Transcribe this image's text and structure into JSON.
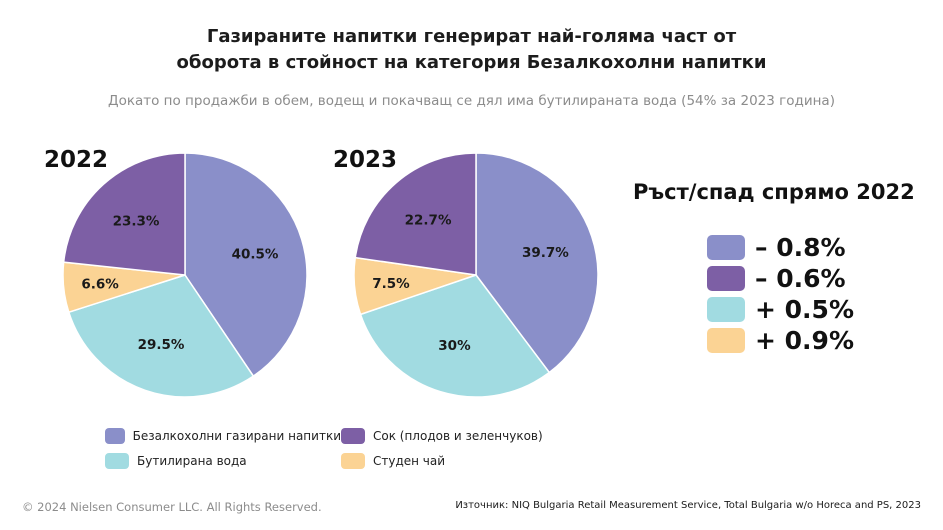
{
  "header": {
    "title_line1": "Газираните напитки генерират най-голяма част от",
    "title_line2": "оборота в стойност на категория Безалкохолни напитки",
    "subtitle": "Докато по продажби в обем, водещ и покачващ се дял има бутилираната вода (54% за 2023 година)"
  },
  "chart_data": [
    {
      "type": "pie",
      "title": "2022",
      "categories": [
        "Безалкохолни газирани напитки",
        "Бутилирана вода",
        "Студен чай",
        "Сок (плодов и зеленчуков)"
      ],
      "values": [
        40.5,
        29.5,
        6.6,
        23.3
      ],
      "labels": [
        "40.5%",
        "29.5%",
        "6.6%",
        "23.3%"
      ],
      "colors": [
        "#8a8fc9",
        "#a1dbe1",
        "#fbd394",
        "#7d5fa5"
      ]
    },
    {
      "type": "pie",
      "title": "2023",
      "categories": [
        "Безалкохолни газирани напитки",
        "Бутилирана вода",
        "Студен чай",
        "Сок (плодов и зеленчуков)"
      ],
      "values": [
        39.7,
        30,
        7.5,
        22.7
      ],
      "labels": [
        "39.7%",
        "30%",
        "7.5%",
        "22.7%"
      ],
      "colors": [
        "#8a8fc9",
        "#a1dbe1",
        "#fbd394",
        "#7d5fa5"
      ]
    }
  ],
  "change": {
    "title": "Ръст/спад спрямо 2022",
    "items": [
      {
        "value": "– 0.8%",
        "color": "#8a8fc9"
      },
      {
        "value": "– 0.6%",
        "color": "#7d5fa5"
      },
      {
        "value": "+ 0.5%",
        "color": "#a1dbe1"
      },
      {
        "value": "+ 0.9%",
        "color": "#fbd394"
      }
    ]
  },
  "legend": {
    "items": [
      {
        "label": "Безалкохолни газирани напитки",
        "color": "#8a8fc9"
      },
      {
        "label": "Сок (плодов и зеленчуков)",
        "color": "#7d5fa5"
      },
      {
        "label": "Бутилирана вода",
        "color": "#a1dbe1"
      },
      {
        "label": "Студен чай",
        "color": "#fbd394"
      }
    ]
  },
  "footer": {
    "copyright": "© 2024 Nielsen Consumer LLC. All Rights Reserved.",
    "source": "Източник: NIQ Bulgaria Retail Measurement Service, Total Bulgaria w/o Horeca and PS, 2023"
  }
}
